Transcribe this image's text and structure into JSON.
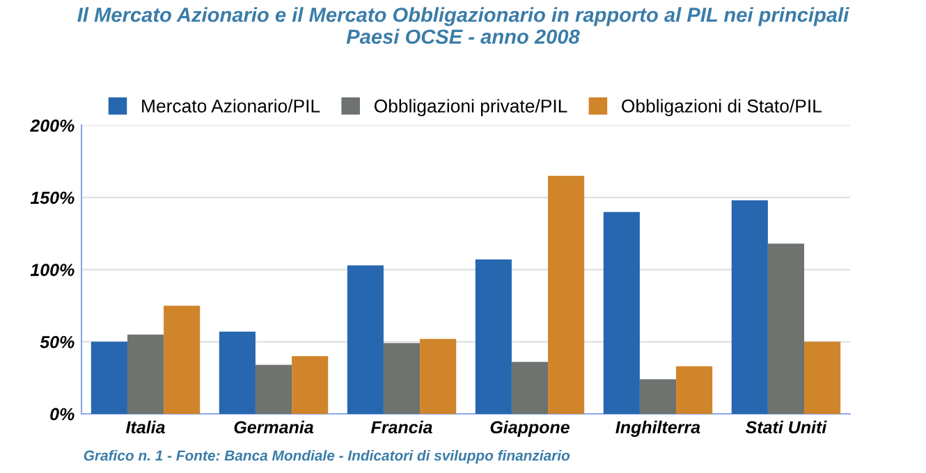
{
  "chart_data": {
    "type": "bar",
    "title": "Il Mercato Azionario e il Mercato Obbligazionario in rapporto al PIL nei principali\nPaesi OCSE - anno 2008",
    "categories": [
      "Italia",
      "Germania",
      "Francia",
      "Giappone",
      "Inghilterra",
      "Stati Uniti"
    ],
    "series": [
      {
        "name": "Mercato Azionario/PIL",
        "color": "#2667b0",
        "values": [
          50,
          57,
          103,
          107,
          140,
          148
        ]
      },
      {
        "name": "Obbligazioni private/PIL",
        "color": "#6e7370",
        "values": [
          55,
          34,
          49,
          36,
          24,
          118
        ]
      },
      {
        "name": "Obbligazioni di Stato/PIL",
        "color": "#d0852b",
        "values": [
          75,
          40,
          52,
          165,
          33,
          50
        ]
      }
    ],
    "ylim": [
      0,
      200
    ],
    "yticks": [
      {
        "value": 0,
        "label": "0%"
      },
      {
        "value": 50,
        "label": "50%"
      },
      {
        "value": 100,
        "label": "100%"
      },
      {
        "value": 150,
        "label": "150%"
      },
      {
        "value": 200,
        "label": "200%"
      }
    ],
    "grid": "y",
    "legend": "top",
    "annotations": [
      "Grafico n. 1 - Fonte: Banca Mondiale - Indicatori di sviluppo finanziario"
    ]
  }
}
